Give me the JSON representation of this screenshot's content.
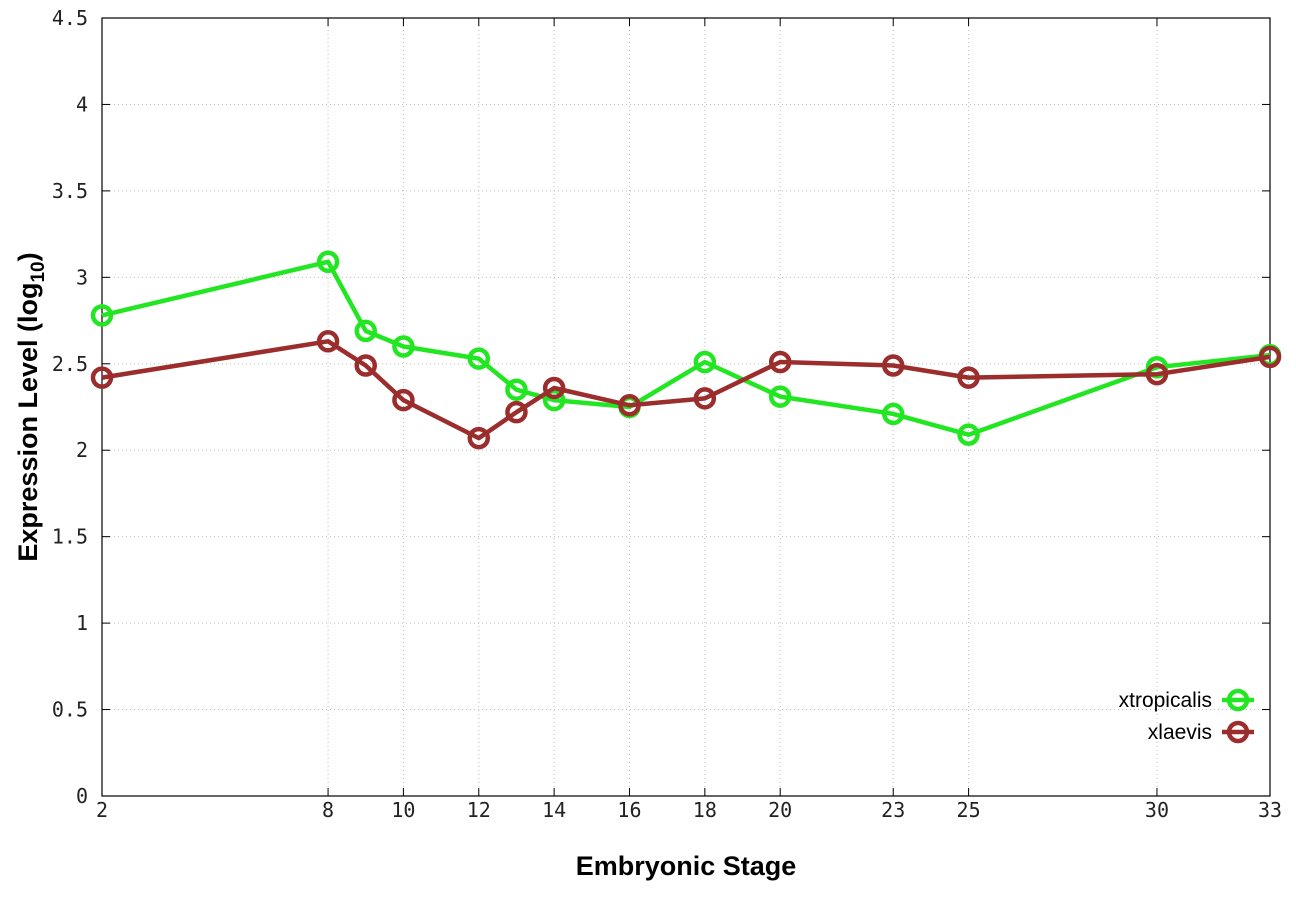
{
  "chart_data": {
    "type": "line",
    "xlabel": "Embryonic Stage",
    "ylabel_main": "Expression Level (log",
    "ylabel_sub": "10",
    "ylabel_close": ")",
    "xlim": [
      2,
      33
    ],
    "ylim": [
      0,
      4.5
    ],
    "x_ticks": [
      2,
      8,
      10,
      12,
      14,
      16,
      18,
      20,
      23,
      25,
      30,
      33
    ],
    "x_tick_labels": [
      "2",
      "8",
      "10",
      "12",
      "14",
      "16",
      "18",
      "20",
      "23",
      "25",
      "30",
      "33"
    ],
    "y_ticks": [
      0,
      0.5,
      1,
      1.5,
      2,
      2.5,
      3,
      3.5,
      4,
      4.5
    ],
    "y_tick_labels": [
      "0",
      "0.5",
      "1",
      "1.5",
      "2",
      "2.5",
      "3",
      "3.5",
      "4",
      "4.5"
    ],
    "grid": true,
    "legend_position": "bottom-right",
    "series": [
      {
        "name": "xtropicalis",
        "color": "#22e622",
        "x": [
          2,
          8,
          9,
          10,
          12,
          13,
          14,
          16,
          18,
          20,
          23,
          25,
          30,
          33
        ],
        "y": [
          2.78,
          3.09,
          2.69,
          2.6,
          2.53,
          2.35,
          2.29,
          2.25,
          2.51,
          2.31,
          2.21,
          2.09,
          2.48,
          2.55
        ]
      },
      {
        "name": "xlaevis",
        "color": "#9b2d2d",
        "x": [
          2,
          8,
          9,
          10,
          12,
          13,
          14,
          16,
          18,
          20,
          23,
          25,
          30,
          33
        ],
        "y": [
          2.42,
          2.63,
          2.49,
          2.29,
          2.07,
          2.22,
          2.36,
          2.26,
          2.3,
          2.51,
          2.49,
          2.42,
          2.44,
          2.54
        ]
      }
    ]
  }
}
